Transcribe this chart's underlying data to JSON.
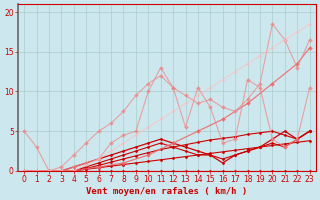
{
  "title": "",
  "xlabel": "Vent moyen/en rafales ( km/h )",
  "ylabel": "",
  "xlim": [
    -0.5,
    23.5
  ],
  "ylim": [
    0,
    21
  ],
  "bg_color": "#cce8ee",
  "grid_color": "#aacccc",
  "axis_color": "#cc0000",
  "series": [
    {
      "x": [
        0,
        1,
        2,
        3,
        4,
        5,
        6,
        7,
        8,
        9,
        10,
        11,
        12,
        13,
        14,
        15,
        16,
        17,
        18,
        19,
        20,
        21,
        22,
        23
      ],
      "y": [
        0,
        0,
        0,
        0,
        0,
        0,
        0,
        0,
        0,
        0,
        0,
        0,
        0,
        0,
        0,
        0,
        0,
        0,
        0,
        0,
        0,
        0,
        0,
        0
      ],
      "color": "#cc0000",
      "marker": "D",
      "markersize": 1.5,
      "linewidth": 0.8,
      "alpha": 1.0
    },
    {
      "x": [
        0,
        1,
        2,
        3,
        4,
        5,
        6,
        7,
        8,
        9,
        10,
        11,
        12,
        13,
        14,
        15,
        16,
        17,
        18,
        19,
        20,
        21,
        22,
        23
      ],
      "y": [
        0,
        0,
        0,
        0,
        0,
        0.2,
        0.4,
        0.6,
        0.8,
        1.0,
        1.2,
        1.4,
        1.6,
        1.8,
        2.0,
        2.2,
        2.4,
        2.6,
        2.8,
        3.0,
        3.2,
        3.4,
        3.6,
        3.8
      ],
      "color": "#cc0000",
      "marker": "D",
      "markersize": 1.5,
      "linewidth": 0.8,
      "alpha": 1.0
    },
    {
      "x": [
        0,
        1,
        2,
        3,
        4,
        5,
        6,
        7,
        8,
        9,
        10,
        11,
        12,
        13,
        14,
        15,
        16,
        17,
        18,
        19,
        20,
        21,
        22,
        23
      ],
      "y": [
        0,
        0,
        0,
        0,
        0,
        0.3,
        0.7,
        1.1,
        1.5,
        1.9,
        2.3,
        2.7,
        3.0,
        3.3,
        3.6,
        3.9,
        4.1,
        4.3,
        4.6,
        4.8,
        5.0,
        4.5,
        4.0,
        5.0
      ],
      "color": "#cc0000",
      "marker": "D",
      "markersize": 1.5,
      "linewidth": 0.8,
      "alpha": 1.0
    },
    {
      "x": [
        0,
        1,
        2,
        3,
        4,
        5,
        6,
        7,
        8,
        9,
        10,
        11,
        12,
        13,
        14,
        15,
        16,
        17,
        18,
        19,
        20,
        21,
        22,
        23
      ],
      "y": [
        0,
        0,
        0,
        0,
        0,
        0.5,
        1.0,
        1.5,
        2.0,
        2.5,
        3.0,
        3.5,
        3.0,
        2.5,
        2.0,
        2.0,
        1.5,
        2.0,
        2.5,
        3.0,
        3.5,
        3.0,
        4.0,
        5.0
      ],
      "color": "#cc0000",
      "marker": "D",
      "markersize": 1.5,
      "linewidth": 0.8,
      "alpha": 1.0
    },
    {
      "x": [
        0,
        1,
        2,
        3,
        4,
        5,
        6,
        7,
        8,
        9,
        10,
        11,
        12,
        13,
        14,
        15,
        16,
        17,
        18,
        19,
        20,
        21,
        22,
        23
      ],
      "y": [
        0,
        0,
        0,
        0,
        0.5,
        1.0,
        1.5,
        2.0,
        2.5,
        3.0,
        3.5,
        4.0,
        3.5,
        3.0,
        2.5,
        2.0,
        1.0,
        2.0,
        2.5,
        3.0,
        4.0,
        5.0,
        4.0,
        5.0
      ],
      "color": "#cc0000",
      "marker": "D",
      "markersize": 1.5,
      "linewidth": 0.9,
      "alpha": 1.0
    },
    {
      "x": [
        0,
        2,
        4,
        6,
        8,
        10,
        12,
        14,
        16,
        18,
        20,
        22,
        23
      ],
      "y": [
        0,
        0,
        0,
        0.5,
        1.0,
        2.0,
        3.5,
        5.0,
        6.5,
        8.5,
        11.0,
        13.5,
        15.5
      ],
      "color": "#ee6666",
      "marker": "D",
      "markersize": 2.0,
      "linewidth": 0.9,
      "alpha": 0.85
    },
    {
      "x": [
        0,
        1,
        2,
        3,
        4,
        5,
        6,
        7,
        8,
        9,
        10,
        11,
        12,
        13,
        14,
        15,
        16,
        17,
        18,
        19,
        20,
        21,
        22,
        23
      ],
      "y": [
        0,
        0,
        0,
        0,
        0.5,
        1.0,
        1.5,
        3.5,
        4.5,
        5.0,
        10.0,
        13.0,
        10.5,
        5.5,
        10.5,
        8.0,
        3.5,
        4.0,
        11.5,
        10.5,
        4.0,
        3.0,
        4.0,
        10.5
      ],
      "color": "#ee8888",
      "marker": "D",
      "markersize": 2.0,
      "linewidth": 0.8,
      "alpha": 0.75
    },
    {
      "x": [
        0,
        1,
        2,
        3,
        4,
        5,
        6,
        7,
        8,
        9,
        10,
        11,
        12,
        13,
        14,
        15,
        16,
        17,
        18,
        19,
        20,
        21,
        22,
        23
      ],
      "y": [
        5,
        3,
        0,
        0.5,
        2.0,
        3.5,
        5.0,
        6.0,
        7.5,
        9.5,
        11.0,
        12.0,
        10.5,
        9.5,
        8.5,
        9.0,
        8.0,
        7.5,
        9.0,
        11.0,
        18.5,
        16.5,
        13.0,
        16.5
      ],
      "color": "#ee8888",
      "marker": "D",
      "markersize": 2.0,
      "linewidth": 0.8,
      "alpha": 0.75
    },
    {
      "x": [
        0,
        1,
        2,
        3,
        4,
        5,
        6,
        7,
        8,
        9,
        10,
        11,
        12,
        13,
        14,
        15,
        16,
        17,
        18,
        19,
        20,
        21,
        22,
        23
      ],
      "y": [
        0,
        0,
        0,
        0,
        0,
        0.8,
        1.5,
        2.5,
        3.5,
        4.5,
        5.5,
        6.5,
        7.5,
        8.5,
        9.5,
        10.5,
        11.5,
        12.5,
        13.5,
        14.5,
        15.5,
        16.5,
        17.5,
        18.5
      ],
      "color": "#ffbbbb",
      "marker": "D",
      "markersize": 1.5,
      "linewidth": 0.8,
      "alpha": 0.65
    }
  ],
  "xticks": [
    0,
    1,
    2,
    3,
    4,
    5,
    6,
    7,
    8,
    9,
    10,
    11,
    12,
    13,
    14,
    15,
    16,
    17,
    18,
    19,
    20,
    21,
    22,
    23
  ],
  "yticks": [
    0,
    5,
    10,
    15,
    20
  ],
  "tick_fontsize": 5.5,
  "label_fontsize": 6.5
}
